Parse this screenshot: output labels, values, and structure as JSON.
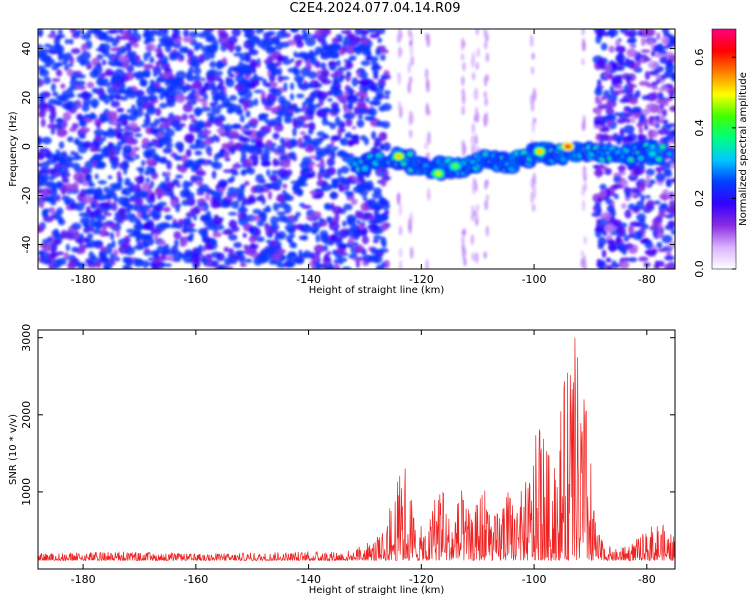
{
  "title": "C2E4.2024.077.04.14.R09",
  "chart_data": [
    {
      "type": "heatmap",
      "xlabel": "Height of straight line (km)",
      "ylabel": "Frequency (Hz)",
      "xlim": [
        -188,
        -75
      ],
      "ylim": [
        -50,
        48
      ],
      "xticks": [
        -180,
        -160,
        -140,
        -120,
        -100,
        -80
      ],
      "yticks": [
        40,
        20,
        0,
        -20,
        -40
      ],
      "colorbar": {
        "label": "Normalized spectral amplitude",
        "range": [
          0.0,
          0.68
        ],
        "ticks": [
          0.0,
          0.2,
          0.4,
          0.6
        ],
        "colors": [
          "#ffffff",
          "#d9b3ff",
          "#8a2be2",
          "#3300ff",
          "#0040ff",
          "#00c8ff",
          "#00ff80",
          "#40ff00",
          "#ffff00",
          "#ff8000",
          "#ff0000",
          "#ff0080"
        ]
      },
      "regions": [
        {
          "x_range": [
            -188,
            -126
          ],
          "y_range": [
            -50,
            48
          ],
          "pattern": "broadband noise",
          "level": 0.12
        },
        {
          "x_range": [
            -126,
            -89
          ],
          "y_range": [
            -50,
            48
          ],
          "pattern": "faint vertical streaks",
          "level": 0.02
        },
        {
          "x_range": [
            -89,
            -75
          ],
          "y_range": [
            -50,
            48
          ],
          "pattern": "broadband noise",
          "level": 0.08
        }
      ],
      "signal_band": [
        {
          "x": -132,
          "y": -8
        },
        {
          "x": -125,
          "y": -4
        },
        {
          "x": -122,
          "y": -6
        },
        {
          "x": -118,
          "y": -10
        },
        {
          "x": -115,
          "y": -8
        },
        {
          "x": -112,
          "y": -9
        },
        {
          "x": -108,
          "y": -5
        },
        {
          "x": -105,
          "y": -8
        },
        {
          "x": -102,
          "y": -5
        },
        {
          "x": -99,
          "y": -2
        },
        {
          "x": -96,
          "y": -4
        },
        {
          "x": -93,
          "y": -1
        },
        {
          "x": -90,
          "y": -3
        },
        {
          "x": -85,
          "y": -4
        },
        {
          "x": -80,
          "y": -2
        },
        {
          "x": -77,
          "y": -3
        }
      ],
      "peaks": [
        {
          "x": -124,
          "y": -4,
          "value": 0.55
        },
        {
          "x": -117,
          "y": -11,
          "value": 0.5
        },
        {
          "x": -114,
          "y": -8,
          "value": 0.45
        },
        {
          "x": -99,
          "y": -2,
          "value": 0.55
        },
        {
          "x": -94,
          "y": 0,
          "value": 0.65
        },
        {
          "x": -79,
          "y": -3,
          "value": 0.35
        },
        {
          "x": -76,
          "y": -3,
          "value": 0.3
        }
      ]
    },
    {
      "type": "line",
      "xlabel": "Height of straight line (km)",
      "ylabel": "SNR (10 * v/v)",
      "xlim": [
        -188,
        -75
      ],
      "ylim": [
        0,
        3100
      ],
      "xticks": [
        -180,
        -160,
        -140,
        -120,
        -100,
        -80
      ],
      "yticks": [
        1000,
        2000,
        3000
      ],
      "color": "#ee2222",
      "baseline": 110,
      "envelope": [
        {
          "x": -188,
          "y": 200
        },
        {
          "x": -175,
          "y": 230
        },
        {
          "x": -160,
          "y": 200
        },
        {
          "x": -145,
          "y": 220
        },
        {
          "x": -132,
          "y": 250
        },
        {
          "x": -127,
          "y": 450
        },
        {
          "x": -125,
          "y": 950
        },
        {
          "x": -123,
          "y": 1500
        },
        {
          "x": -121,
          "y": 700
        },
        {
          "x": -119,
          "y": 400
        },
        {
          "x": -117,
          "y": 1400
        },
        {
          "x": -115,
          "y": 700
        },
        {
          "x": -113,
          "y": 1050
        },
        {
          "x": -111,
          "y": 650
        },
        {
          "x": -109,
          "y": 1200
        },
        {
          "x": -107,
          "y": 700
        },
        {
          "x": -105,
          "y": 1050
        },
        {
          "x": -103,
          "y": 900
        },
        {
          "x": -101,
          "y": 1250
        },
        {
          "x": -99,
          "y": 2000
        },
        {
          "x": -97,
          "y": 1400
        },
        {
          "x": -95,
          "y": 2300
        },
        {
          "x": -93,
          "y": 3080
        },
        {
          "x": -91,
          "y": 2450
        },
        {
          "x": -89,
          "y": 500
        },
        {
          "x": -86,
          "y": 250
        },
        {
          "x": -82,
          "y": 380
        },
        {
          "x": -78,
          "y": 650
        },
        {
          "x": -75,
          "y": 420
        }
      ]
    }
  ]
}
